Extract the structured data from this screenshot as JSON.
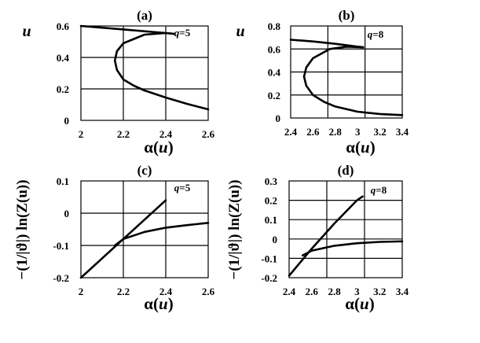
{
  "chart_data": [
    {
      "id": "a",
      "type": "line",
      "panel_label": "(a)",
      "title": "",
      "xlabel": "α(u)",
      "ylabel": "u",
      "xlim": [
        2,
        2.6
      ],
      "ylim": [
        0,
        0.6
      ],
      "xticks": [
        "2",
        "2.2",
        "2.4",
        "2.6"
      ],
      "yticks": [
        "0",
        "0.2",
        "0.4",
        "0.6"
      ],
      "grid": true,
      "annotation": "q=5",
      "series": [
        {
          "x": [
            2.0,
            2.2,
            2.4,
            2.44
          ],
          "y": [
            0.6,
            0.578,
            0.555,
            0.55
          ]
        },
        {
          "x": [
            2.44,
            2.4,
            2.3,
            2.2,
            2.17,
            2.16,
            2.17,
            2.2,
            2.25,
            2.3,
            2.4,
            2.5,
            2.6
          ],
          "y": [
            0.55,
            0.555,
            0.545,
            0.49,
            0.44,
            0.38,
            0.32,
            0.26,
            0.22,
            0.19,
            0.145,
            0.105,
            0.07
          ]
        }
      ]
    },
    {
      "id": "b",
      "type": "line",
      "panel_label": "(b)",
      "title": "",
      "xlabel": "α(u)",
      "ylabel": "u",
      "xlim": [
        2.4,
        3.4
      ],
      "ylim": [
        0,
        0.8
      ],
      "xticks": [
        "2.4",
        "2.6",
        "2.8",
        "3",
        "3.2",
        "3.4"
      ],
      "yticks": [
        "0",
        "0.2",
        "0.4",
        "0.6",
        "0.8"
      ],
      "grid": true,
      "annotation": "q=8",
      "series": [
        {
          "x": [
            2.4,
            2.6,
            2.8,
            3.0,
            3.05
          ],
          "y": [
            0.68,
            0.665,
            0.645,
            0.62,
            0.615
          ]
        },
        {
          "x": [
            3.05,
            2.9,
            2.75,
            2.6,
            2.54,
            2.52,
            2.54,
            2.6,
            2.7,
            2.8,
            3.0,
            3.2,
            3.4
          ],
          "y": [
            0.615,
            0.62,
            0.6,
            0.52,
            0.44,
            0.36,
            0.28,
            0.2,
            0.14,
            0.1,
            0.055,
            0.035,
            0.025
          ]
        }
      ]
    },
    {
      "id": "c",
      "type": "line",
      "panel_label": "(c)",
      "title": "",
      "xlabel": "α(u)",
      "ylabel": "−(1/|ϑ|) ln(Z(u))",
      "xlim": [
        2,
        2.6
      ],
      "ylim": [
        -0.2,
        0.1
      ],
      "xticks": [
        "2",
        "2.2",
        "2.4",
        "2.6"
      ],
      "yticks": [
        "-0.2",
        "-0.1",
        "0",
        "0.1"
      ],
      "grid": true,
      "annotation": "q=5",
      "series": [
        {
          "x": [
            2.0,
            2.2,
            2.4
          ],
          "y": [
            -0.2,
            -0.08,
            0.04
          ]
        },
        {
          "x": [
            2.16,
            2.2,
            2.3,
            2.4,
            2.5,
            2.6
          ],
          "y": [
            -0.1,
            -0.08,
            -0.058,
            -0.045,
            -0.037,
            -0.03
          ]
        }
      ]
    },
    {
      "id": "d",
      "type": "line",
      "panel_label": "(d)",
      "title": "",
      "xlabel": "α(u)",
      "ylabel": "−(1/|ϑ|) ln(Z(u))",
      "xlim": [
        2.4,
        3.4
      ],
      "ylim": [
        -0.2,
        0.3
      ],
      "xticks": [
        "2.4",
        "2.6",
        "2.8",
        "3",
        "3.2",
        "3.4"
      ],
      "yticks": [
        "-0.2",
        "-0.1",
        "0",
        "0.1",
        "0.2",
        "0.3"
      ],
      "grid": true,
      "annotation": "q=8",
      "series": [
        {
          "x": [
            2.4,
            2.6,
            2.8,
            3.0,
            3.05
          ],
          "y": [
            -0.19,
            -0.05,
            0.08,
            0.2,
            0.22
          ]
        },
        {
          "x": [
            2.52,
            2.6,
            2.8,
            3.0,
            3.2,
            3.4
          ],
          "y": [
            -0.085,
            -0.06,
            -0.035,
            -0.022,
            -0.015,
            -0.012
          ]
        }
      ]
    }
  ]
}
